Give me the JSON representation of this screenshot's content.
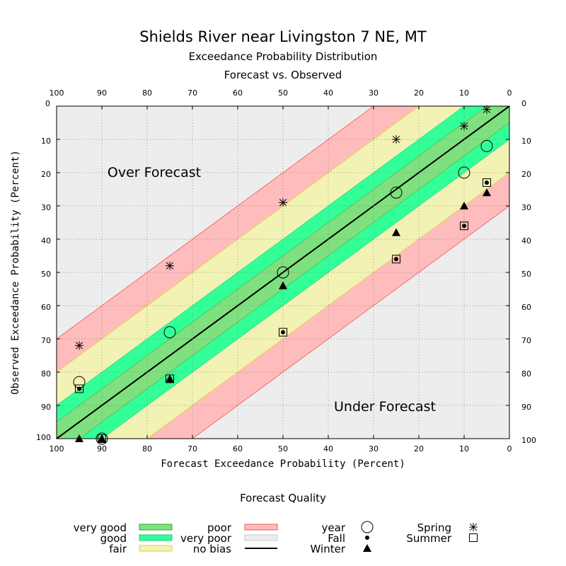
{
  "title": "Shields River near Livingston 7 NE, MT",
  "subtitle1": "Exceedance Probability Distribution",
  "subtitle2": "Forecast vs. Observed",
  "chart_data": {
    "type": "scatter",
    "xlabel": "Forecast Exceedance Probability (Percent)",
    "ylabel": "Observed Exceedance Probability (Percent)",
    "xlim": [
      100,
      0
    ],
    "ylim": [
      0,
      100
    ],
    "ticks": [
      100,
      90,
      80,
      70,
      60,
      50,
      40,
      30,
      20,
      10,
      0
    ],
    "yticks": [
      0,
      10,
      20,
      30,
      40,
      50,
      60,
      70,
      80,
      90,
      100
    ],
    "annotations": {
      "over": "Over Forecast",
      "under": "Under Forecast"
    },
    "bands": [
      {
        "name": "very good",
        "half_width": 5,
        "color": "#7ee07e"
      },
      {
        "name": "good",
        "half_width": 10,
        "color": "#33ff99"
      },
      {
        "name": "fair",
        "half_width": 20,
        "color": "#f2f2b4"
      },
      {
        "name": "poor",
        "half_width": 30,
        "color": "#ffbcbc"
      },
      {
        "name": "very poor",
        "half_width": 100,
        "color": "#ededed"
      }
    ],
    "series": [
      {
        "name": "year",
        "marker": "circle",
        "points": [
          [
            95,
            83
          ],
          [
            90,
            100
          ],
          [
            75,
            68
          ],
          [
            50,
            50
          ],
          [
            25,
            26
          ],
          [
            10,
            20
          ],
          [
            5,
            12
          ]
        ]
      },
      {
        "name": "Spring",
        "marker": "asterisk",
        "points": [
          [
            95,
            72
          ],
          [
            75,
            48
          ],
          [
            50,
            29
          ],
          [
            25,
            10
          ],
          [
            10,
            6
          ],
          [
            5,
            1
          ]
        ]
      },
      {
        "name": "Summer",
        "marker": "square",
        "points": [
          [
            95,
            85
          ],
          [
            90,
            100
          ],
          [
            75,
            82
          ],
          [
            50,
            68
          ],
          [
            25,
            46
          ],
          [
            10,
            36
          ],
          [
            5,
            23
          ]
        ]
      },
      {
        "name": "Fall",
        "marker": "dot",
        "points": [
          [
            95,
            85
          ],
          [
            90,
            100
          ],
          [
            75,
            82
          ],
          [
            50,
            68
          ],
          [
            25,
            46
          ],
          [
            10,
            36
          ],
          [
            5,
            23
          ]
        ]
      },
      {
        "name": "Winter",
        "marker": "triangle",
        "points": [
          [
            95,
            100
          ],
          [
            90,
            100
          ],
          [
            75,
            82
          ],
          [
            50,
            54
          ],
          [
            25,
            38
          ],
          [
            10,
            30
          ],
          [
            5,
            26
          ]
        ]
      }
    ]
  },
  "legend": {
    "title": "Forecast Quality",
    "quality": [
      {
        "label": "very good",
        "color": "#7ee07e",
        "stroke": "#33aa33"
      },
      {
        "label": "good",
        "color": "#33ff99",
        "stroke": "#22cc77"
      },
      {
        "label": "fair",
        "color": "#f2f2b4",
        "stroke": "#e8c840"
      },
      {
        "label": "poor",
        "color": "#ffbcbc",
        "stroke": "#ee5555"
      },
      {
        "label": "very poor",
        "color": "#ededed",
        "stroke": "#cccccc"
      },
      {
        "label": "no bias",
        "color": "#000000",
        "stroke": "#000000"
      }
    ],
    "markers": [
      {
        "label": "year",
        "marker": "circle"
      },
      {
        "label": "Fall",
        "marker": "dot"
      },
      {
        "label": "Winter",
        "marker": "triangle"
      },
      {
        "label": "Spring",
        "marker": "asterisk"
      },
      {
        "label": "Summer",
        "marker": "square"
      }
    ]
  }
}
